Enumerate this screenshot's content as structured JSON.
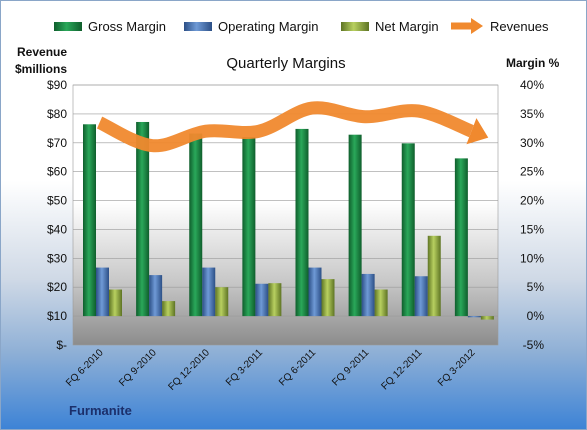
{
  "chart_data": {
    "type": "bar",
    "title": "Quarterly Margins",
    "source_label": "Furmanite",
    "categories": [
      "FQ 6-2010",
      "FQ 9-2010",
      "FQ 12-2010",
      "FQ 3-2011",
      "FQ 6-2011",
      "FQ 9-2011",
      "FQ 12-2011",
      "FQ 3-2012"
    ],
    "y_left": {
      "label_line1": "Revenue",
      "label_line2": "$millions",
      "ylim": [
        0,
        90
      ],
      "ticks": [
        {
          "v": 0,
          "label": "$-"
        },
        {
          "v": 10,
          "label": "$10"
        },
        {
          "v": 20,
          "label": "$20"
        },
        {
          "v": 30,
          "label": "$30"
        },
        {
          "v": 40,
          "label": "$40"
        },
        {
          "v": 50,
          "label": "$50"
        },
        {
          "v": 60,
          "label": "$60"
        },
        {
          "v": 70,
          "label": "$70"
        },
        {
          "v": 80,
          "label": "$80"
        },
        {
          "v": 90,
          "label": "$90"
        }
      ]
    },
    "y_right": {
      "label": "Margin %",
      "ylim": [
        -5,
        40
      ],
      "ticks": [
        {
          "v": -5,
          "label": "-5%"
        },
        {
          "v": 0,
          "label": "0%"
        },
        {
          "v": 5,
          "label": "5%"
        },
        {
          "v": 10,
          "label": "10%"
        },
        {
          "v": 15,
          "label": "15%"
        },
        {
          "v": 20,
          "label": "20%"
        },
        {
          "v": 25,
          "label": "25%"
        },
        {
          "v": 30,
          "label": "30%"
        },
        {
          "v": 35,
          "label": "35%"
        },
        {
          "v": 40,
          "label": "40%"
        }
      ]
    },
    "series": [
      {
        "name": "Gross Margin",
        "axis": "right",
        "kind": "bar",
        "color": "#1e8a45",
        "values": [
          33.2,
          33.6,
          31.6,
          31.0,
          32.4,
          31.4,
          29.9,
          27.3
        ]
      },
      {
        "name": "Operating Margin",
        "axis": "right",
        "kind": "bar",
        "color": "#4f7fc0",
        "values": [
          8.4,
          7.1,
          8.4,
          5.6,
          8.4,
          7.3,
          6.9,
          -0.2
        ]
      },
      {
        "name": "Net Margin",
        "axis": "right",
        "kind": "bar",
        "color": "#9cb84a",
        "values": [
          4.6,
          2.6,
          5.0,
          5.7,
          6.4,
          4.6,
          13.9,
          -0.6
        ]
      },
      {
        "name": "Revenues",
        "axis": "left",
        "kind": "line-arrow",
        "color": "#f0892e",
        "values": [
          77,
          69,
          74,
          74,
          82,
          79,
          81,
          74
        ]
      }
    ],
    "grid": true,
    "legend_position": "top"
  }
}
